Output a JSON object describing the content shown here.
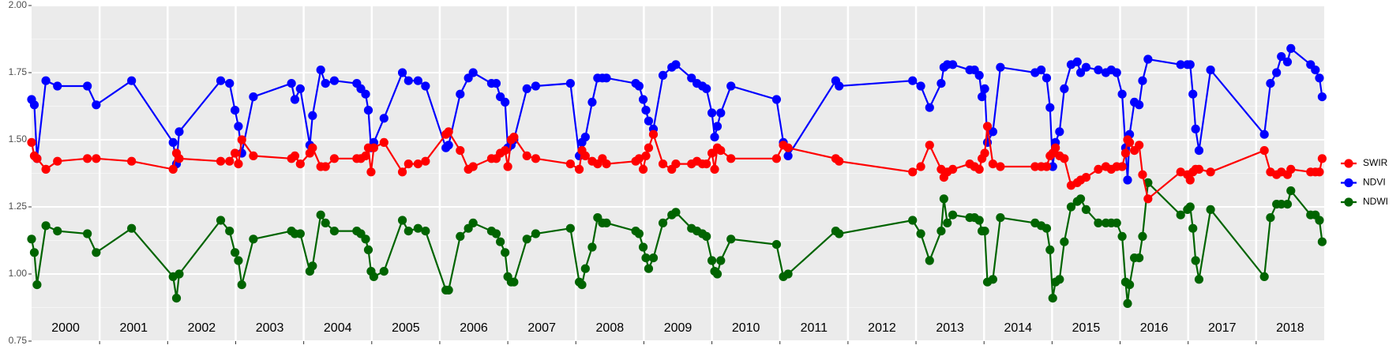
{
  "chart_data": {
    "type": "line",
    "x": [
      2000.0,
      2000.04,
      2000.08,
      2000.21,
      2000.38,
      2000.82,
      2000.95,
      2001.47,
      2002.08,
      2002.13,
      2002.17,
      2002.78,
      2002.91,
      2002.99,
      2003.04,
      2003.09,
      2003.26,
      2003.82,
      2003.87,
      2003.95,
      2004.09,
      2004.13,
      2004.25,
      2004.32,
      2004.45,
      2004.78,
      2004.84,
      2004.91,
      2004.95,
      2004.99,
      2005.03,
      2005.18,
      2005.45,
      2005.54,
      2005.68,
      2005.79,
      2006.09,
      2006.13,
      2006.3,
      2006.42,
      2006.49,
      2006.76,
      2006.83,
      2006.89,
      2006.96,
      2007.0,
      2007.05,
      2007.09,
      2007.28,
      2007.41,
      2007.92,
      2008.05,
      2008.09,
      2008.14,
      2008.24,
      2008.32,
      2008.39,
      2008.45,
      2008.88,
      2008.93,
      2008.99,
      2009.03,
      2009.07,
      2009.14,
      2009.28,
      2009.41,
      2009.47,
      2009.7,
      2009.78,
      2009.86,
      2009.92,
      2010.0,
      2010.04,
      2010.08,
      2010.13,
      2010.28,
      2010.95,
      2011.05,
      2011.12,
      2011.82,
      2011.87,
      2012.95,
      2013.07,
      2013.2,
      2013.37,
      2013.41,
      2013.46,
      2013.54,
      2013.79,
      2013.86,
      2013.93,
      2013.97,
      2014.01,
      2014.05,
      2014.13,
      2014.24,
      2014.75,
      2014.84,
      2014.92,
      2014.97,
      2015.01,
      2015.05,
      2015.11,
      2015.18,
      2015.28,
      2015.37,
      2015.42,
      2015.5,
      2015.68,
      2015.79,
      2015.87,
      2015.95,
      2016.03,
      2016.08,
      2016.11,
      2016.14,
      2016.21,
      2016.28,
      2016.33,
      2016.41,
      2016.89,
      2016.99,
      2017.03,
      2017.07,
      2017.11,
      2017.16,
      2017.33,
      2018.12,
      2018.21,
      2018.3,
      2018.37,
      2018.46,
      2018.51,
      2018.8,
      2018.87,
      2018.93,
      2018.97
    ],
    "series": [
      {
        "name": "SWIR",
        "color": "#ff0000",
        "values": [
          1.49,
          1.44,
          1.43,
          1.39,
          1.42,
          1.43,
          1.43,
          1.42,
          1.39,
          1.45,
          1.43,
          1.42,
          1.42,
          1.45,
          1.41,
          1.5,
          1.44,
          1.43,
          1.44,
          1.41,
          1.45,
          1.47,
          1.4,
          1.4,
          1.43,
          1.43,
          1.43,
          1.44,
          1.47,
          1.38,
          1.47,
          1.49,
          1.38,
          1.41,
          1.41,
          1.42,
          1.52,
          1.53,
          1.46,
          1.39,
          1.4,
          1.43,
          1.43,
          1.45,
          1.46,
          1.4,
          1.5,
          1.51,
          1.44,
          1.43,
          1.41,
          1.39,
          1.46,
          1.44,
          1.42,
          1.41,
          1.43,
          1.41,
          1.42,
          1.43,
          1.39,
          1.44,
          1.47,
          1.52,
          1.41,
          1.39,
          1.41,
          1.41,
          1.42,
          1.41,
          1.41,
          1.45,
          1.39,
          1.47,
          1.46,
          1.43,
          1.43,
          1.48,
          1.47,
          1.43,
          1.42,
          1.38,
          1.4,
          1.48,
          1.39,
          1.36,
          1.38,
          1.39,
          1.41,
          1.4,
          1.39,
          1.43,
          1.45,
          1.55,
          1.41,
          1.4,
          1.4,
          1.4,
          1.4,
          1.44,
          1.45,
          1.47,
          1.44,
          1.43,
          1.33,
          1.34,
          1.35,
          1.36,
          1.39,
          1.4,
          1.39,
          1.4,
          1.4,
          1.45,
          1.5,
          1.49,
          1.46,
          1.48,
          1.37,
          1.28,
          1.38,
          1.37,
          1.35,
          1.38,
          1.39,
          1.39,
          1.38,
          1.46,
          1.38,
          1.37,
          1.38,
          1.37,
          1.39,
          1.38,
          1.38,
          1.38,
          1.43
        ]
      },
      {
        "name": "NDVI",
        "color": "#0000ff",
        "values": [
          1.65,
          1.63,
          1.43,
          1.72,
          1.7,
          1.7,
          1.63,
          1.72,
          1.49,
          1.41,
          1.53,
          1.72,
          1.71,
          1.61,
          1.55,
          1.45,
          1.66,
          1.71,
          1.65,
          1.69,
          1.48,
          1.59,
          1.76,
          1.71,
          1.72,
          1.71,
          1.69,
          1.67,
          1.61,
          1.47,
          1.49,
          1.58,
          1.75,
          1.72,
          1.72,
          1.7,
          1.47,
          1.48,
          1.67,
          1.73,
          1.75,
          1.71,
          1.71,
          1.66,
          1.64,
          1.47,
          1.48,
          1.5,
          1.69,
          1.7,
          1.71,
          1.44,
          1.49,
          1.51,
          1.64,
          1.73,
          1.73,
          1.73,
          1.71,
          1.7,
          1.65,
          1.61,
          1.57,
          1.54,
          1.74,
          1.77,
          1.78,
          1.73,
          1.71,
          1.7,
          1.69,
          1.6,
          1.51,
          1.55,
          1.6,
          1.7,
          1.65,
          1.49,
          1.44,
          1.72,
          1.7,
          1.72,
          1.7,
          1.62,
          1.71,
          1.77,
          1.78,
          1.78,
          1.76,
          1.76,
          1.74,
          1.66,
          1.69,
          1.49,
          1.53,
          1.77,
          1.75,
          1.76,
          1.73,
          1.62,
          1.4,
          1.49,
          1.53,
          1.69,
          1.78,
          1.79,
          1.75,
          1.77,
          1.76,
          1.75,
          1.76,
          1.75,
          1.67,
          1.47,
          1.35,
          1.52,
          1.64,
          1.63,
          1.72,
          1.8,
          1.78,
          1.78,
          1.78,
          1.67,
          1.54,
          1.46,
          1.76,
          1.52,
          1.71,
          1.75,
          1.81,
          1.79,
          1.84,
          1.78,
          1.76,
          1.73,
          1.66
        ]
      },
      {
        "name": "NDWI",
        "color": "#006400",
        "values": [
          1.13,
          1.08,
          0.96,
          1.18,
          1.16,
          1.15,
          1.08,
          1.17,
          0.99,
          0.91,
          1.0,
          1.2,
          1.16,
          1.08,
          1.05,
          0.96,
          1.13,
          1.16,
          1.15,
          1.15,
          1.01,
          1.03,
          1.22,
          1.19,
          1.16,
          1.16,
          1.15,
          1.13,
          1.09,
          1.01,
          0.99,
          1.01,
          1.2,
          1.16,
          1.17,
          1.16,
          0.94,
          0.94,
          1.14,
          1.17,
          1.19,
          1.16,
          1.15,
          1.12,
          1.08,
          0.99,
          0.97,
          0.97,
          1.13,
          1.15,
          1.17,
          0.97,
          0.96,
          1.02,
          1.1,
          1.21,
          1.19,
          1.19,
          1.16,
          1.15,
          1.1,
          1.06,
          1.02,
          1.06,
          1.19,
          1.22,
          1.23,
          1.17,
          1.16,
          1.15,
          1.14,
          1.05,
          1.01,
          1.0,
          1.05,
          1.13,
          1.11,
          0.99,
          1.0,
          1.16,
          1.15,
          1.2,
          1.15,
          1.05,
          1.16,
          1.28,
          1.19,
          1.22,
          1.21,
          1.21,
          1.2,
          1.16,
          1.16,
          0.97,
          0.98,
          1.21,
          1.19,
          1.18,
          1.17,
          1.09,
          0.91,
          0.97,
          0.98,
          1.12,
          1.25,
          1.27,
          1.28,
          1.24,
          1.19,
          1.19,
          1.19,
          1.19,
          1.14,
          0.97,
          0.89,
          0.96,
          1.06,
          1.06,
          1.14,
          1.34,
          1.22,
          1.24,
          1.25,
          1.17,
          1.05,
          0.98,
          1.24,
          0.99,
          1.21,
          1.26,
          1.26,
          1.26,
          1.31,
          1.22,
          1.22,
          1.2,
          1.12
        ]
      }
    ],
    "xlim": [
      2000,
      2019
    ],
    "xticks": [
      2001,
      2002,
      2003,
      2004,
      2005,
      2006,
      2007,
      2008,
      2009,
      2010,
      2011,
      2012,
      2013,
      2014,
      2015,
      2016,
      2017,
      2018
    ],
    "year_labels": [
      {
        "value": 2000.5,
        "label": "2000"
      },
      {
        "value": 2001.5,
        "label": "2001"
      },
      {
        "value": 2002.5,
        "label": "2002"
      },
      {
        "value": 2003.5,
        "label": "2003"
      },
      {
        "value": 2004.5,
        "label": "2004"
      },
      {
        "value": 2005.5,
        "label": "2005"
      },
      {
        "value": 2006.5,
        "label": "2006"
      },
      {
        "value": 2007.5,
        "label": "2007"
      },
      {
        "value": 2008.5,
        "label": "2008"
      },
      {
        "value": 2009.5,
        "label": "2009"
      },
      {
        "value": 2010.5,
        "label": "2010"
      },
      {
        "value": 2011.5,
        "label": "2011"
      },
      {
        "value": 2012.5,
        "label": "2012"
      },
      {
        "value": 2013.5,
        "label": "2013"
      },
      {
        "value": 2014.5,
        "label": "2014"
      },
      {
        "value": 2015.5,
        "label": "2015"
      },
      {
        "value": 2016.5,
        "label": "2016"
      },
      {
        "value": 2017.5,
        "label": "2017"
      },
      {
        "value": 2018.5,
        "label": "2018"
      }
    ],
    "ylim": [
      0.75,
      2
    ],
    "yticks": [
      0.75,
      {
        "value": 1,
        "label": "1.00"
      },
      1.25,
      {
        "value": 1.5,
        "label": "1.50"
      },
      1.75,
      {
        "value": 2,
        "label": "2.00"
      }
    ],
    "grid": true,
    "legend": "right"
  }
}
